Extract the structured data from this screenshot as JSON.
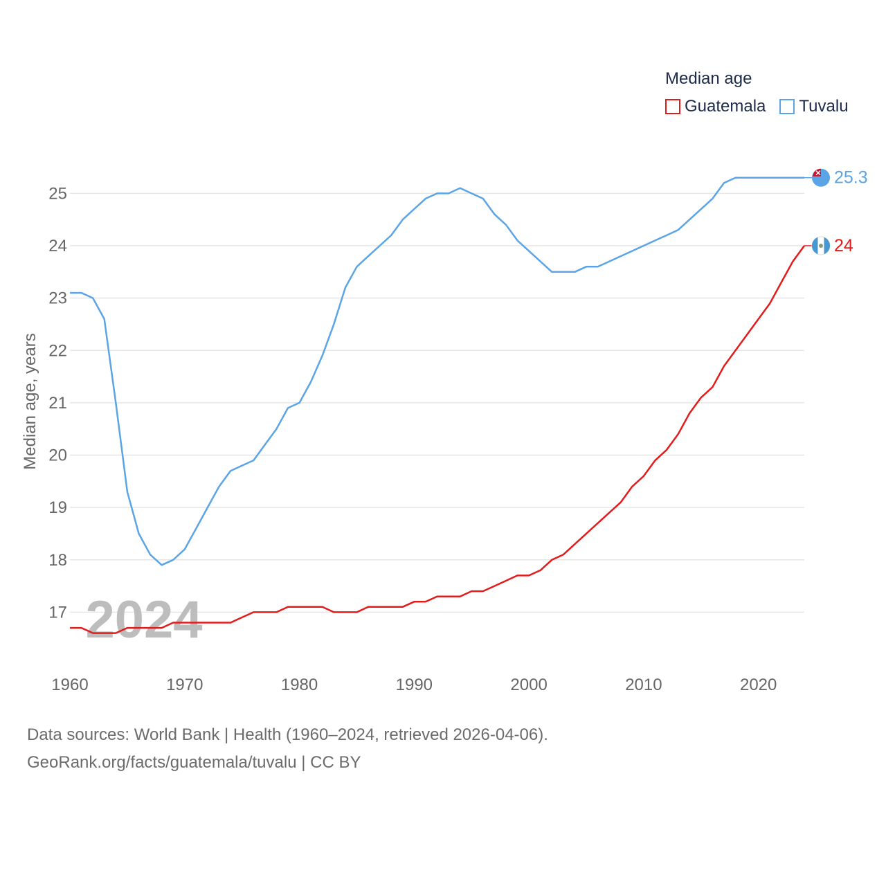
{
  "legend": {
    "title": "Median age",
    "items": [
      {
        "label": "Guatemala",
        "color": "#e31b1b"
      },
      {
        "label": "Tuvalu",
        "color": "#5ba4e5"
      }
    ]
  },
  "footer": {
    "line1": "Data sources: World Bank | Health (1960–2024, retrieved 2026-04-06).",
    "line2": "GeoRank.org/facts/guatemala/tuvalu | CC BY"
  },
  "chart_data": {
    "type": "line",
    "title": "Median age",
    "xlabel": "",
    "ylabel": "Median age, years",
    "year_label": "2024",
    "xlim": [
      1960,
      2024
    ],
    "ylim": [
      16,
      25.6
    ],
    "x_ticks": [
      1960,
      1970,
      1980,
      1990,
      2000,
      2010,
      2020
    ],
    "y_ticks": [
      17,
      18,
      19,
      20,
      21,
      22,
      23,
      24,
      25
    ],
    "x": [
      1960,
      1961,
      1962,
      1963,
      1964,
      1965,
      1966,
      1967,
      1968,
      1969,
      1970,
      1971,
      1972,
      1973,
      1974,
      1975,
      1976,
      1977,
      1978,
      1979,
      1980,
      1981,
      1982,
      1983,
      1984,
      1985,
      1986,
      1987,
      1988,
      1989,
      1990,
      1991,
      1992,
      1993,
      1994,
      1995,
      1996,
      1997,
      1998,
      1999,
      2000,
      2001,
      2002,
      2003,
      2004,
      2005,
      2006,
      2007,
      2008,
      2009,
      2010,
      2011,
      2012,
      2013,
      2014,
      2015,
      2016,
      2017,
      2018,
      2019,
      2020,
      2021,
      2022,
      2023,
      2024
    ],
    "series": [
      {
        "name": "Guatemala",
        "color": "#e31b1b",
        "end_label": "24",
        "values": [
          16.7,
          16.7,
          16.6,
          16.6,
          16.6,
          16.7,
          16.7,
          16.7,
          16.7,
          16.8,
          16.8,
          16.8,
          16.8,
          16.8,
          16.8,
          16.9,
          17.0,
          17.0,
          17.0,
          17.1,
          17.1,
          17.1,
          17.1,
          17.0,
          17.0,
          17.0,
          17.1,
          17.1,
          17.1,
          17.1,
          17.2,
          17.2,
          17.3,
          17.3,
          17.3,
          17.4,
          17.4,
          17.5,
          17.6,
          17.7,
          17.7,
          17.8,
          18.0,
          18.1,
          18.3,
          18.5,
          18.7,
          18.9,
          19.1,
          19.4,
          19.6,
          19.9,
          20.1,
          20.4,
          20.8,
          21.1,
          21.3,
          21.7,
          22.0,
          22.3,
          22.6,
          22.9,
          23.3,
          23.7,
          24.0
        ]
      },
      {
        "name": "Tuvalu",
        "color": "#5ba4e5",
        "end_label": "25.3",
        "values": [
          23.1,
          23.1,
          23.0,
          22.6,
          21.0,
          19.3,
          18.5,
          18.1,
          17.9,
          18.0,
          18.2,
          18.6,
          19.0,
          19.4,
          19.7,
          19.8,
          19.9,
          20.2,
          20.5,
          20.9,
          21.0,
          21.4,
          21.9,
          22.5,
          23.2,
          23.6,
          23.8,
          24.0,
          24.2,
          24.5,
          24.7,
          24.9,
          25.0,
          25.0,
          25.1,
          25.0,
          24.9,
          24.6,
          24.4,
          24.1,
          23.9,
          23.7,
          23.5,
          23.5,
          23.5,
          23.6,
          23.6,
          23.7,
          23.8,
          23.9,
          24.0,
          24.1,
          24.2,
          24.3,
          24.5,
          24.7,
          24.9,
          25.2,
          25.3,
          25.3,
          25.3,
          25.3,
          25.3,
          25.3,
          25.3
        ]
      }
    ]
  }
}
